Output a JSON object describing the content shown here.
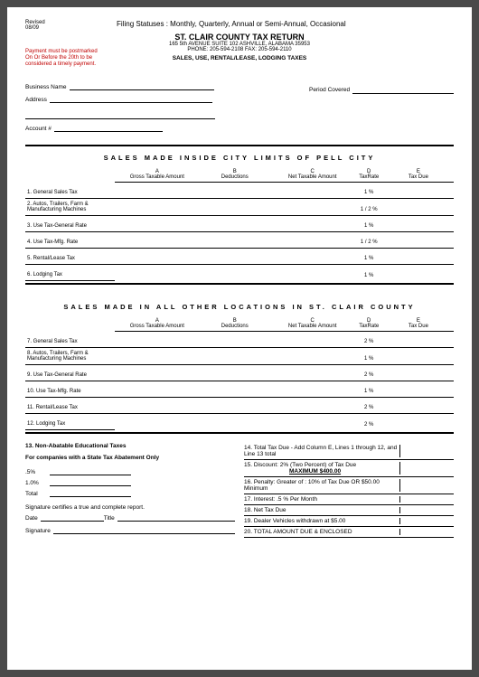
{
  "meta": {
    "rev1": "Revised",
    "rev2": "08/09",
    "filing": "Filing Statuses :  Monthly, Quarterly, Annual or Semi-Annual, Occasional"
  },
  "hdr": {
    "title": "ST. CLAIR COUNTY TAX RETURN",
    "addr": "165  5th AVENUE   SUITE 102   ASHVILLE, ALABAMA  35953",
    "phone": "PHONE:  205-594-2108   FAX:  205-594-2110",
    "sub": "SALES,  USE,  RENTAL/LEASE,  LODGING TAXES",
    "red1": "Payment must be postmarked",
    "red2": "On Or Before the 20th  to be",
    "red3": "considered a timely payment."
  },
  "fld": {
    "biz": "Business Name",
    "addr": "Address",
    "acct": "Account #",
    "period": "Period Covered"
  },
  "t1": {
    "title": "SALES  MADE  INSIDE  CITY  LIMITS  OF  PELL  CITY"
  },
  "t2": {
    "title": "SALES  MADE  IN  ALL  OTHER  LOCATIONS  IN  ST.  CLAIR  COUNTY"
  },
  "cols": {
    "a1": "A",
    "a2": "Gross Taxable Amount",
    "b1": "B",
    "b2": "Deductions",
    "c1": "C",
    "c2": "Net Taxable Amount",
    "d1": "D",
    "d2": "Tax",
    "d3": "Rate",
    "e1": "E",
    "e2": "Tax Due"
  },
  "rows1": [
    {
      "lbl": "1.  General Sales Tax",
      "rate": "1 %"
    },
    {
      "lbl": "2. Autos, Trailers, Farm & Manufacturing Machines",
      "rate": "1 / 2 %"
    },
    {
      "lbl": "3.  Use Tax-General Rate",
      "rate": "1 %"
    },
    {
      "lbl": "4.  Use Tax-Mfg. Rate",
      "rate": "1 / 2 %"
    },
    {
      "lbl": "5.  Rental/Lease Tax",
      "rate": "1 %"
    },
    {
      "lbl": "6.  Lodging Tax",
      "rate": "1 %"
    }
  ],
  "rows2": [
    {
      "lbl": "7.  General Sales Tax",
      "rate": "2 %"
    },
    {
      "lbl": "8. Autos, Trailers, Farm & Manufacturing Machines",
      "rate": "1 %"
    },
    {
      "lbl": "9.  Use Tax-General Rate",
      "rate": "2 %"
    },
    {
      "lbl": "10.  Use Tax-Mfg. Rate",
      "rate": "1 %"
    },
    {
      "lbl": "11. Rental/Lease Tax",
      "rate": "2 %"
    },
    {
      "lbl": "12.  Lodging Tax",
      "rate": "2 %"
    }
  ],
  "bleft": {
    "h1": "13.  Non-Abatable Educational Taxes",
    "h2": "For companies with a State Tax Abatement Only",
    "r1": ".5%",
    "r2": "1.0%",
    "r3": "Total",
    "sig": "Signature certifies a true and complete report.",
    "date": "Date",
    "title2": "Title",
    "signature": "Signature"
  },
  "bright": {
    "l14": "14. Total Tax Due   -    Add  Column E, Lines  1 through 12,  and Line 13 total",
    "l15": "15.  Discount:  2%  (Two Percent) of Tax Due",
    "l15b": "MAXIMUM  $400.00",
    "l16": "16.   Penalty:  Greater of :  10% of Tax Due  OR   $50.00  Minimum",
    "l17": "17.   Interest:   .5 % Per Month",
    "l18": "18.   Net Tax Due",
    "l19": "19.    Dealer Vehicles withdrawn at $5.00",
    "l20": "20.  TOTAL AMOUNT DUE & ENCLOSED"
  }
}
